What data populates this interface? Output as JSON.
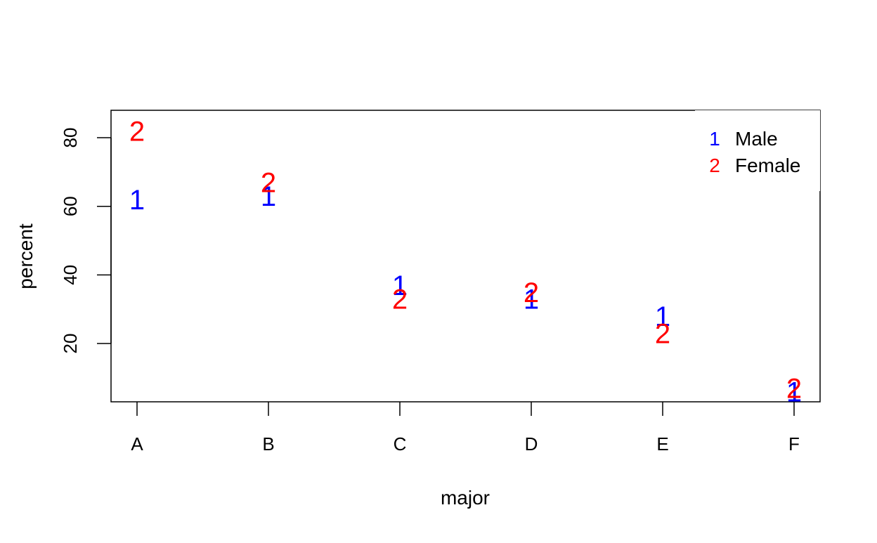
{
  "chart_data": {
    "type": "scatter",
    "categories": [
      "A",
      "B",
      "C",
      "D",
      "E",
      "F"
    ],
    "series": [
      {
        "name": "Male",
        "symbol": "1",
        "color": "#0000ff",
        "values": [
          62,
          63,
          37,
          33,
          28,
          6
        ]
      },
      {
        "name": "Female",
        "symbol": "2",
        "color": "#ff0000",
        "values": [
          82,
          67,
          33,
          35,
          23,
          7
        ]
      }
    ],
    "xlabel": "major",
    "ylabel": "percent",
    "yticks": [
      20,
      40,
      60,
      80
    ],
    "ylim": [
      3,
      88
    ],
    "grid": false,
    "legend_position": "top-right"
  }
}
